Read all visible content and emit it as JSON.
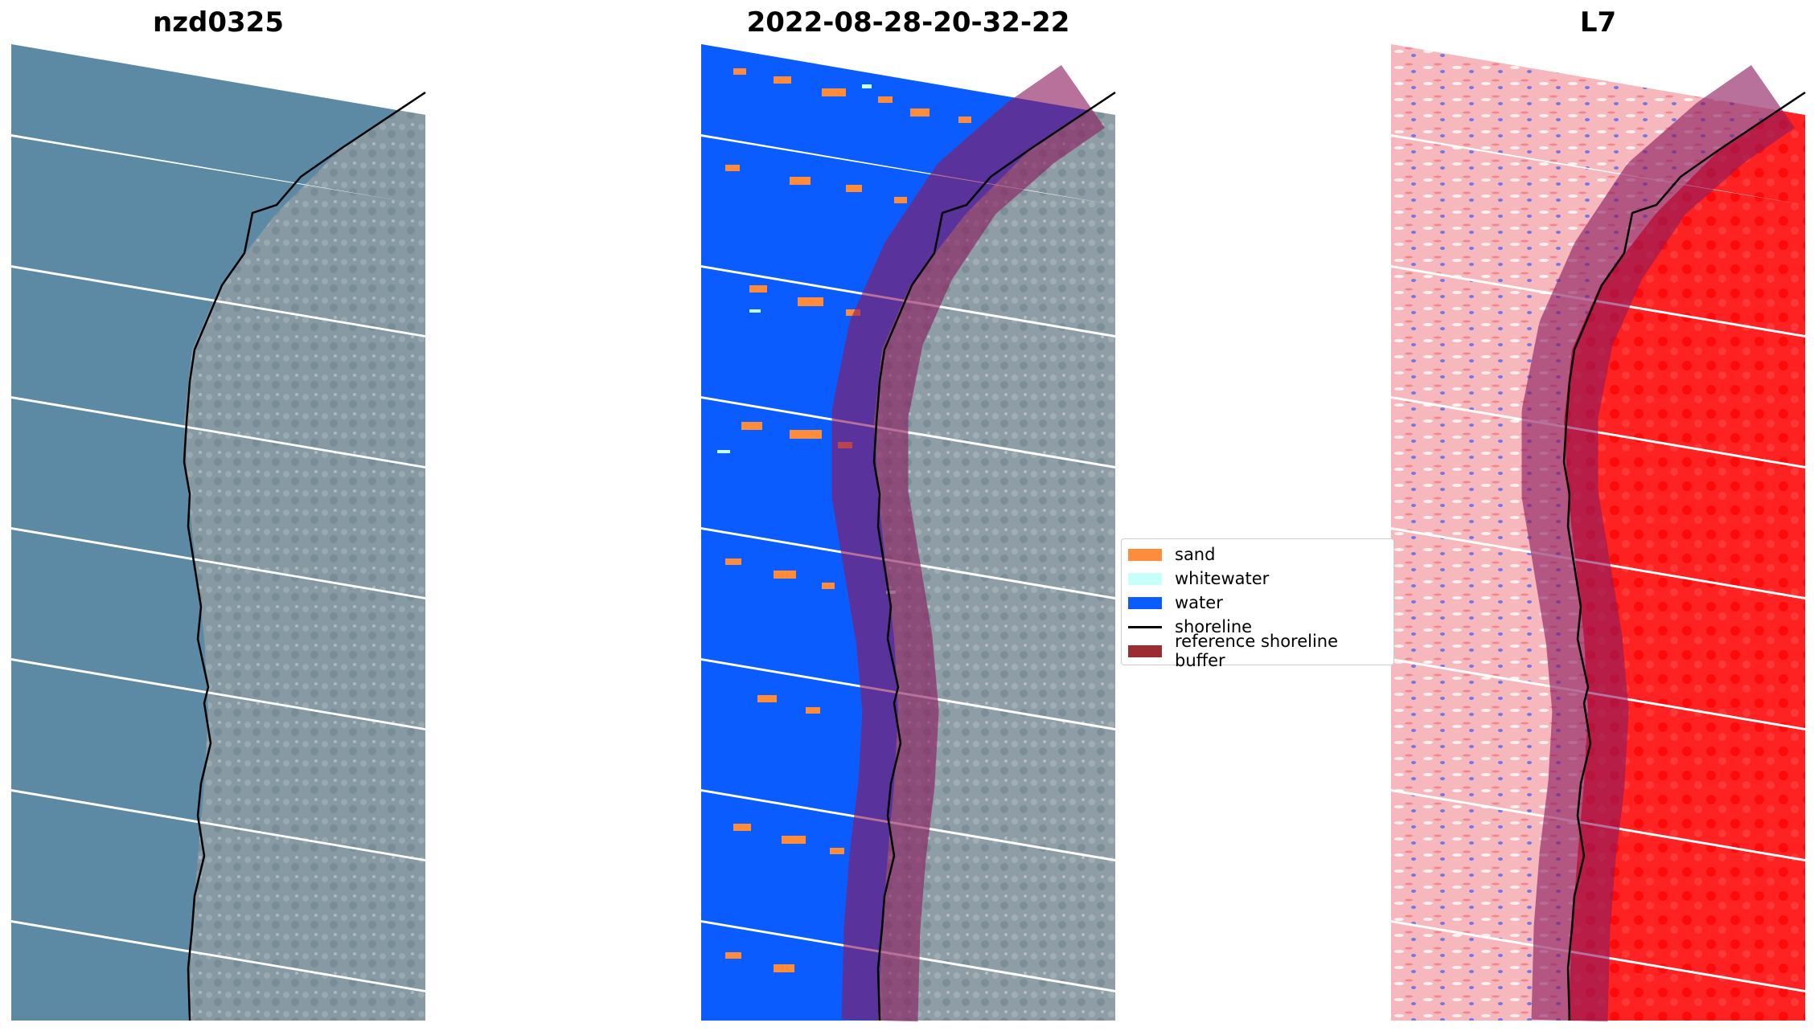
{
  "panels": [
    {
      "id": "rgb",
      "title": "nzd0325"
    },
    {
      "id": "classified",
      "title": "2022-08-28-20-32-22"
    },
    {
      "id": "index",
      "title": "L7"
    }
  ],
  "legend": {
    "items": [
      {
        "label": "sand",
        "color": "#ff8c3a",
        "kind": "patch"
      },
      {
        "label": "whitewater",
        "color": "#c8fffa",
        "kind": "patch"
      },
      {
        "label": "water",
        "color": "#0a5cff",
        "kind": "patch"
      },
      {
        "label": "shoreline",
        "color": "#000000",
        "kind": "line"
      },
      {
        "label": "reference shoreline buffer",
        "color": "#9b2d30",
        "kind": "patch"
      }
    ]
  },
  "colors": {
    "rgb_sea": "#5f8aa6",
    "rgb_land": "#8e9da6",
    "water": "#0a5cff",
    "sand": "#ff8c3a",
    "whitewater": "#c8fffa",
    "index_sea": "#f7b8bd",
    "index_land": "#ff1a1a",
    "buffer_overlay": "#8a1a5e"
  }
}
